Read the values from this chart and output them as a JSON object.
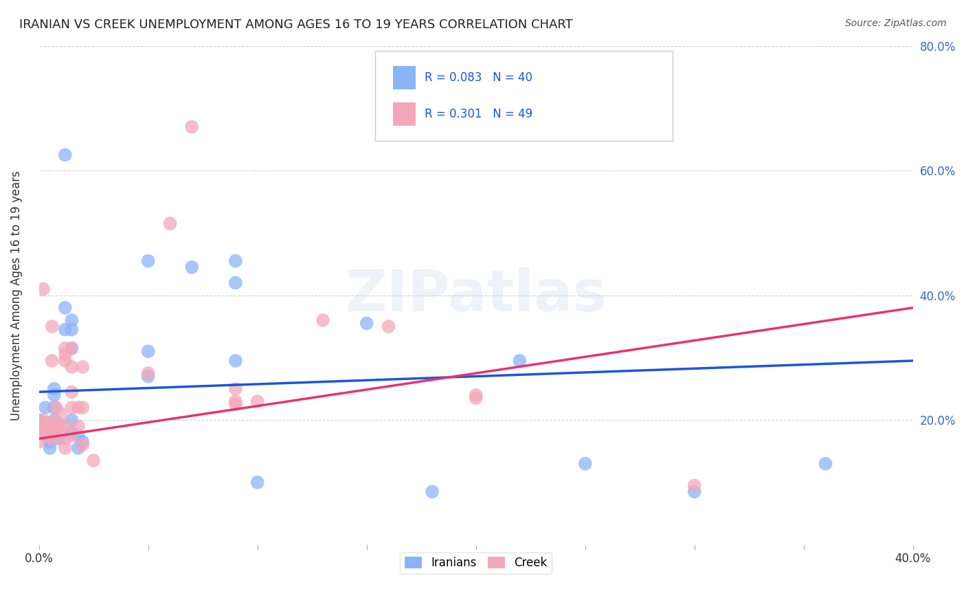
{
  "title": "IRANIAN VS CREEK UNEMPLOYMENT AMONG AGES 16 TO 19 YEARS CORRELATION CHART",
  "source": "Source: ZipAtlas.com",
  "ylabel": "Unemployment Among Ages 16 to 19 years",
  "xlim": [
    0.0,
    0.4
  ],
  "ylim": [
    0.0,
    0.8
  ],
  "xticks": [
    0.0,
    0.05,
    0.1,
    0.15,
    0.2,
    0.25,
    0.3,
    0.35,
    0.4
  ],
  "yticks": [
    0.0,
    0.2,
    0.4,
    0.6,
    0.8
  ],
  "iranian_color": "#8ab4f8",
  "creek_color": "#f4a7b9",
  "iranian_line_color": "#1a56db",
  "creek_line_color": "#e8336d",
  "R_iranian": 0.083,
  "N_iranian": 40,
  "R_creek": 0.301,
  "N_creek": 49,
  "legend_label_iranian": "Iranians",
  "legend_label_creek": "Creek",
  "watermark": "ZIPatlas",
  "background_color": "#ffffff",
  "iranian_points": [
    [
      0.0,
      0.18
    ],
    [
      0.0,
      0.2
    ],
    [
      0.003,
      0.22
    ],
    [
      0.003,
      0.195
    ],
    [
      0.003,
      0.175
    ],
    [
      0.005,
      0.19
    ],
    [
      0.005,
      0.165
    ],
    [
      0.005,
      0.155
    ],
    [
      0.007,
      0.25
    ],
    [
      0.007,
      0.24
    ],
    [
      0.007,
      0.22
    ],
    [
      0.007,
      0.2
    ],
    [
      0.007,
      0.18
    ],
    [
      0.009,
      0.195
    ],
    [
      0.009,
      0.17
    ],
    [
      0.012,
      0.625
    ],
    [
      0.012,
      0.38
    ],
    [
      0.012,
      0.345
    ],
    [
      0.015,
      0.36
    ],
    [
      0.015,
      0.345
    ],
    [
      0.015,
      0.315
    ],
    [
      0.015,
      0.2
    ],
    [
      0.015,
      0.18
    ],
    [
      0.018,
      0.175
    ],
    [
      0.018,
      0.155
    ],
    [
      0.02,
      0.165
    ],
    [
      0.05,
      0.455
    ],
    [
      0.05,
      0.31
    ],
    [
      0.05,
      0.27
    ],
    [
      0.07,
      0.445
    ],
    [
      0.09,
      0.455
    ],
    [
      0.09,
      0.42
    ],
    [
      0.09,
      0.295
    ],
    [
      0.1,
      0.1
    ],
    [
      0.15,
      0.355
    ],
    [
      0.18,
      0.085
    ],
    [
      0.22,
      0.295
    ],
    [
      0.25,
      0.13
    ],
    [
      0.3,
      0.085
    ],
    [
      0.36,
      0.13
    ]
  ],
  "creek_points": [
    [
      0.0,
      0.19
    ],
    [
      0.0,
      0.18
    ],
    [
      0.0,
      0.165
    ],
    [
      0.002,
      0.41
    ],
    [
      0.002,
      0.2
    ],
    [
      0.002,
      0.195
    ],
    [
      0.002,
      0.185
    ],
    [
      0.004,
      0.195
    ],
    [
      0.004,
      0.185
    ],
    [
      0.004,
      0.175
    ],
    [
      0.006,
      0.35
    ],
    [
      0.006,
      0.295
    ],
    [
      0.006,
      0.195
    ],
    [
      0.006,
      0.17
    ],
    [
      0.008,
      0.22
    ],
    [
      0.008,
      0.195
    ],
    [
      0.008,
      0.185
    ],
    [
      0.008,
      0.175
    ],
    [
      0.01,
      0.21
    ],
    [
      0.01,
      0.185
    ],
    [
      0.012,
      0.315
    ],
    [
      0.012,
      0.305
    ],
    [
      0.012,
      0.295
    ],
    [
      0.012,
      0.19
    ],
    [
      0.012,
      0.17
    ],
    [
      0.012,
      0.155
    ],
    [
      0.015,
      0.315
    ],
    [
      0.015,
      0.285
    ],
    [
      0.015,
      0.245
    ],
    [
      0.015,
      0.22
    ],
    [
      0.015,
      0.175
    ],
    [
      0.018,
      0.22
    ],
    [
      0.018,
      0.19
    ],
    [
      0.02,
      0.285
    ],
    [
      0.02,
      0.22
    ],
    [
      0.02,
      0.16
    ],
    [
      0.025,
      0.135
    ],
    [
      0.05,
      0.275
    ],
    [
      0.06,
      0.515
    ],
    [
      0.07,
      0.67
    ],
    [
      0.09,
      0.25
    ],
    [
      0.09,
      0.23
    ],
    [
      0.09,
      0.225
    ],
    [
      0.1,
      0.23
    ],
    [
      0.13,
      0.36
    ],
    [
      0.16,
      0.35
    ],
    [
      0.2,
      0.24
    ],
    [
      0.2,
      0.235
    ],
    [
      0.3,
      0.095
    ]
  ],
  "iranian_trend_x": [
    0.0,
    0.4
  ],
  "iranian_trend_y": [
    0.245,
    0.295
  ],
  "creek_trend_x": [
    0.0,
    0.4
  ],
  "creek_trend_y": [
    0.17,
    0.38
  ]
}
